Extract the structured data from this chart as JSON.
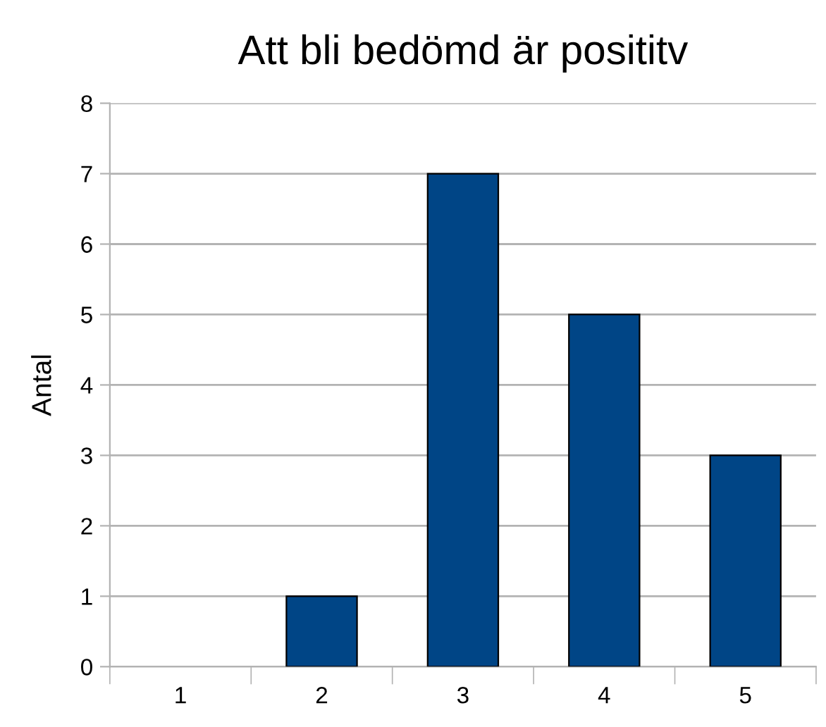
{
  "chart_data": {
    "type": "bar",
    "title": "Att bli bedömd är posititv",
    "ylabel": "Antal",
    "categories": [
      "1",
      "2",
      "3",
      "4",
      "5"
    ],
    "values": [
      0,
      1,
      7,
      5,
      3
    ],
    "color": "#004586",
    "ylim": [
      0,
      8
    ],
    "yticks": [
      0,
      1,
      2,
      3,
      4,
      5,
      6,
      7,
      8
    ],
    "grid": "y",
    "legend": false
  }
}
